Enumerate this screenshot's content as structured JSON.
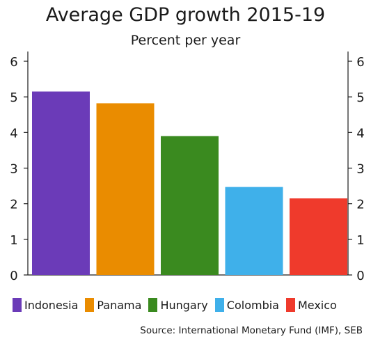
{
  "title": "Average GDP growth 2015-19",
  "subtitle": "Percent per year",
  "source": "Source: International Monetary Fund (IMF), SEB",
  "chart_data": {
    "type": "bar",
    "title": "Average GDP growth 2015-19",
    "subtitle": "Percent per year",
    "categories": [
      "Indonesia",
      "Panama",
      "Hungary",
      "Colombia",
      "Mexico"
    ],
    "values": [
      5.15,
      4.82,
      3.9,
      2.47,
      2.15
    ],
    "colors": [
      "#6b3bb8",
      "#ea8c00",
      "#3a8a1f",
      "#3fb0ea",
      "#ef3a2c"
    ],
    "ylim": [
      0,
      6
    ],
    "yticks": [
      0,
      1,
      2,
      3,
      4,
      5,
      6
    ],
    "y_axis_sides": [
      "left",
      "right"
    ],
    "grid": false,
    "legend_position": "bottom"
  }
}
